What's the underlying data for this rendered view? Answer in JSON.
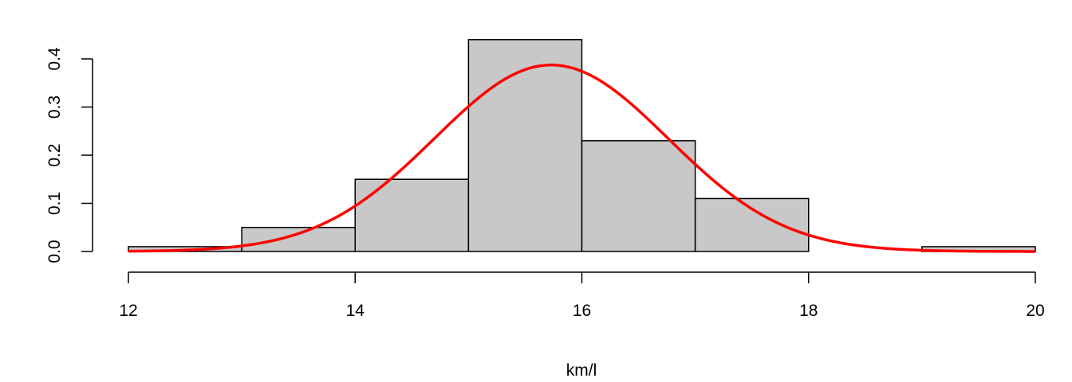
{
  "chart_data": {
    "type": "bar",
    "title": "",
    "xlabel": "km/l",
    "ylabel": "",
    "bins": [
      {
        "x0": 12,
        "x1": 13,
        "density": 0.01
      },
      {
        "x0": 13,
        "x1": 14,
        "density": 0.05
      },
      {
        "x0": 14,
        "x1": 15,
        "density": 0.15
      },
      {
        "x0": 15,
        "x1": 16,
        "density": 0.44
      },
      {
        "x0": 16,
        "x1": 17,
        "density": 0.23
      },
      {
        "x0": 17,
        "x1": 18,
        "density": 0.11
      },
      {
        "x0": 18,
        "x1": 19,
        "density": 0.0
      },
      {
        "x0": 19,
        "x1": 20,
        "density": 0.01
      }
    ],
    "curve": {
      "type": "normal-density",
      "mean": 15.73,
      "sd": 1.03,
      "color": "#ff0000"
    },
    "xlim": [
      12,
      20
    ],
    "ylim": [
      0,
      0.44
    ],
    "xticks": [
      "12",
      "14",
      "16",
      "18",
      "20"
    ],
    "yticks": [
      "0.0",
      "0.1",
      "0.2",
      "0.3",
      "0.4"
    ],
    "bar_fill": "#c8c8c8",
    "bar_stroke": "#000000",
    "grid": false
  }
}
